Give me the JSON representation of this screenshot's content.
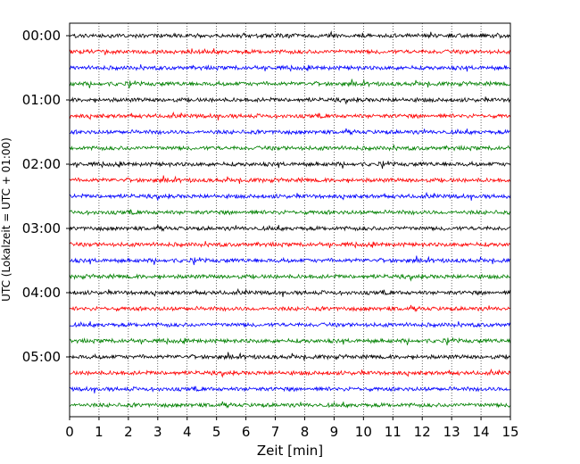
{
  "chart_data": {
    "type": "line",
    "title": "",
    "xlabel": "Zeit  [min]",
    "ylabel": "UTC (Lokalzeit = UTC + 01:00)",
    "xlim": [
      0,
      15
    ],
    "x_ticks": [
      "0",
      "1",
      "2",
      "3",
      "4",
      "5",
      "6",
      "7",
      "8",
      "9",
      "10",
      "11",
      "12",
      "13",
      "14",
      "15"
    ],
    "y_ticks": [
      "00:00",
      "01:00",
      "02:00",
      "03:00",
      "04:00",
      "05:00"
    ],
    "grid": "vertical dotted at each minute",
    "trace_start_minutes_utc": [
      0,
      15,
      30,
      45,
      60,
      75,
      90,
      105,
      120,
      135,
      150,
      165,
      180,
      195,
      210,
      225,
      240,
      255,
      270,
      285,
      300,
      315,
      330,
      345
    ],
    "trace_colors": [
      "#000000",
      "#ff0000",
      "#0000ff",
      "#008000"
    ],
    "legend": "none"
  }
}
